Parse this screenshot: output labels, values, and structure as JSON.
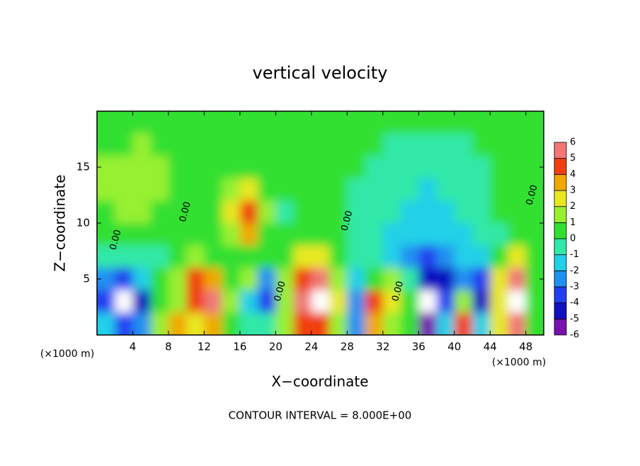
{
  "chart_data": {
    "type": "contour",
    "title": "vertical velocity",
    "x_label": "X−coordinate",
    "y_label": "Z−coordinate",
    "x_unit": "(×1000 m)",
    "footer": "CONTOUR INTERVAL = 8.000E+00",
    "xlim": [
      0,
      50
    ],
    "ylim": [
      0,
      20
    ],
    "xticks": [
      4,
      8,
      12,
      16,
      20,
      24,
      28,
      32,
      36,
      40,
      44,
      48
    ],
    "yticks": [
      5,
      10,
      15
    ],
    "x": [
      1,
      3,
      5,
      7,
      9,
      11,
      13,
      15,
      17,
      19,
      21,
      23,
      25,
      27,
      29,
      31,
      33,
      35,
      37,
      39,
      41,
      43,
      45,
      47,
      49
    ],
    "z": [
      19,
      17,
      15,
      13,
      11,
      9,
      7,
      5,
      3,
      1
    ],
    "values": [
      [
        0.5,
        0.6,
        0.6,
        0.5,
        0.5,
        0.4,
        0.4,
        0.4,
        0.4,
        0.4,
        0.4,
        0.3,
        0.3,
        0.3,
        0.3,
        0.3,
        0.3,
        0.2,
        0.2,
        0.2,
        0.2,
        0.2,
        0.2,
        0.3,
        0.3
      ],
      [
        0.8,
        0.9,
        1,
        0.8,
        0.6,
        0.5,
        0.4,
        0.4,
        0.4,
        0.3,
        0.3,
        0.3,
        0.3,
        0.2,
        0.2,
        0,
        -0.3,
        -0.5,
        -0.5,
        -0.5,
        -0.3,
        0,
        0.2,
        0.3,
        0.3
      ],
      [
        1,
        1.2,
        1.3,
        1,
        0.6,
        0.4,
        0.3,
        0.5,
        0.8,
        0.3,
        0.2,
        0.2,
        0.2,
        0.2,
        0,
        -0.3,
        -0.5,
        -0.7,
        -0.8,
        -0.6,
        -0.4,
        -0.2,
        0,
        0.3,
        0.3
      ],
      [
        1.1,
        1.5,
        1.6,
        1.2,
        0.6,
        0.3,
        0.3,
        1.5,
        2.5,
        0.5,
        0.2,
        0.2,
        0.3,
        0.2,
        -0.2,
        -0.5,
        -0.8,
        -1,
        -1.2,
        -0.9,
        -0.7,
        -0.4,
        0,
        0.3,
        0.3
      ],
      [
        0.8,
        1,
        1.1,
        0.8,
        0.4,
        0.2,
        0.4,
        2,
        4.5,
        1,
        -0.2,
        0.2,
        0.3,
        0.2,
        -0.3,
        -0.7,
        -1,
        -1.3,
        -1.5,
        -1.2,
        -1,
        -0.6,
        0,
        0.3,
        0.2
      ],
      [
        0.3,
        0.5,
        0.6,
        0.5,
        0.3,
        0.2,
        0.3,
        1,
        3.5,
        0.6,
        0,
        0.2,
        0.3,
        0,
        -0.4,
        -0.8,
        -1.2,
        -1.6,
        -1.8,
        -1.7,
        -1.5,
        -1,
        -0.3,
        0.3,
        0
      ],
      [
        -0.3,
        -0.5,
        -0.6,
        -0.3,
        0,
        1.5,
        0.6,
        0.2,
        0.8,
        0.3,
        0.8,
        2.5,
        2,
        0.3,
        -0.5,
        -1,
        -1.5,
        -2.5,
        -3.5,
        -3,
        -2,
        -1.5,
        0.5,
        2,
        0
      ],
      [
        -3,
        -3.5,
        -2,
        0.5,
        1.5,
        4,
        3,
        0.3,
        1,
        -2.5,
        1.5,
        4.5,
        5,
        1,
        -1.5,
        0.5,
        1.5,
        -0.5,
        -5,
        -4.5,
        -3,
        -4,
        2,
        5,
        0.3
      ],
      [
        -4,
        -7,
        -5,
        0,
        1,
        4.5,
        5,
        1,
        -2,
        -4,
        1.5,
        5,
        7,
        2,
        -3,
        4,
        2,
        0.3,
        -7,
        -4,
        1,
        -5,
        2.5,
        7,
        0.3
      ],
      [
        -2,
        -4,
        -3,
        1,
        3,
        2.5,
        3,
        0.5,
        -1,
        -0.5,
        1,
        4,
        4.5,
        1.5,
        -3,
        3,
        1,
        0.3,
        -6,
        -2,
        4,
        -2,
        2,
        5,
        0.3
      ]
    ],
    "contour_labels": [
      {
        "label": "0.00",
        "x": 2.1,
        "z": 8.5
      },
      {
        "label": "0.00",
        "x": 9.9,
        "z": 11
      },
      {
        "label": "0.00",
        "x": 20.5,
        "z": 3.9
      },
      {
        "label": "0.00",
        "x": 28,
        "z": 10.2
      },
      {
        "label": "0.00",
        "x": 33.7,
        "z": 3.9
      },
      {
        "label": "0.00",
        "x": 48.7,
        "z": 12.5
      }
    ],
    "colorbar": {
      "ticks": [
        -6,
        -5,
        -4,
        -3,
        -2,
        -1,
        0,
        1,
        2,
        3,
        4,
        5,
        6
      ],
      "colors": [
        "#7a10b0",
        "#1010c0",
        "#2040f0",
        "#2090f0",
        "#20d0e8",
        "#30e8a8",
        "#30e030",
        "#98f030",
        "#e8e820",
        "#f0a800",
        "#f04010",
        "#f07878"
      ],
      "out_of_range_color": "#ffffff"
    }
  }
}
